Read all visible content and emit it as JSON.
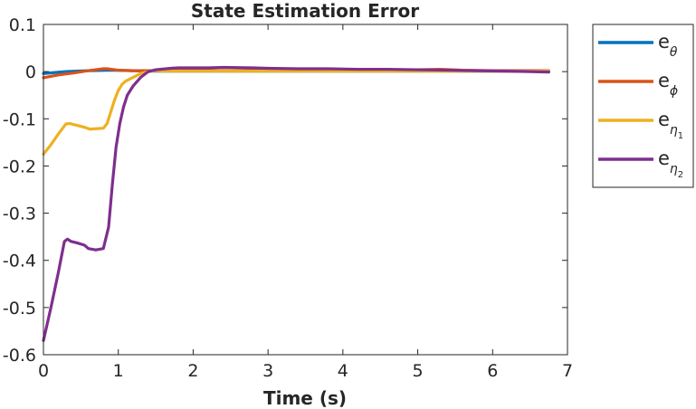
{
  "chart_data": {
    "type": "line",
    "title": "State Estimation Error",
    "xlabel": "Time (s)",
    "ylabel": "",
    "xlim": [
      0,
      7
    ],
    "ylim": [
      -0.6,
      0.1
    ],
    "xticks": [
      0,
      1,
      2,
      3,
      4,
      5,
      6,
      7
    ],
    "xtick_labels": [
      "0",
      "1",
      "2",
      "3",
      "4",
      "5",
      "6",
      "7"
    ],
    "yticks": [
      0.1,
      0,
      -0.1,
      -0.2,
      -0.3,
      -0.4,
      -0.5,
      -0.6
    ],
    "ytick_labels": [
      "0.1",
      "0",
      "-0.1",
      "-0.2",
      "-0.3",
      "-0.4",
      "-0.5",
      "-0.6"
    ],
    "grid": false,
    "legend_position": "outside-right",
    "series": [
      {
        "name": "e_θ",
        "legend_base": "e",
        "legend_sub": "θ",
        "legend_subsub": "",
        "color": "#0072BD",
        "x": [
          0,
          0.3,
          0.6,
          0.9,
          1.2,
          1.5,
          2.0,
          3.0,
          4.0,
          5.0,
          6.0,
          6.75
        ],
        "y": [
          -0.004,
          0.0,
          0.002,
          0.003,
          0.002,
          0.001,
          0.001,
          0.001,
          0.001,
          0.001,
          0.001,
          0.001
        ]
      },
      {
        "name": "e_φ",
        "legend_base": "e",
        "legend_sub": "ϕ",
        "legend_subsub": "",
        "color": "#D95319",
        "x": [
          0,
          0.2,
          0.4,
          0.6,
          0.8,
          0.85,
          1.0,
          1.2,
          1.5,
          2.0,
          3.0,
          4.0,
          5.0,
          5.3,
          5.6,
          6.0,
          6.75
        ],
        "y": [
          -0.013,
          -0.007,
          -0.003,
          0.002,
          0.006,
          0.006,
          0.003,
          0.002,
          0.002,
          0.002,
          0.002,
          0.002,
          0.004,
          0.005,
          0.003,
          0.002,
          0.002
        ]
      },
      {
        "name": "e_η1",
        "legend_base": "e",
        "legend_sub": "η",
        "legend_subsub": "1",
        "color": "#EDB120",
        "x": [
          0,
          0.1,
          0.2,
          0.3,
          0.35,
          0.45,
          0.55,
          0.62,
          0.7,
          0.8,
          0.85,
          0.9,
          0.95,
          1.0,
          1.05,
          1.1,
          1.2,
          1.3,
          1.4,
          1.5,
          1.7,
          2.0,
          3.0,
          4.0,
          5.0,
          6.0,
          6.75
        ],
        "y": [
          -0.175,
          -0.155,
          -0.132,
          -0.111,
          -0.11,
          -0.114,
          -0.118,
          -0.122,
          -0.121,
          -0.12,
          -0.11,
          -0.085,
          -0.06,
          -0.04,
          -0.027,
          -0.02,
          -0.012,
          -0.004,
          0.0,
          0.002,
          0.001,
          0.001,
          0.001,
          0.001,
          0.001,
          0.001,
          0.001
        ]
      },
      {
        "name": "e_η2",
        "legend_base": "e",
        "legend_sub": "η",
        "legend_subsub": "2",
        "color": "#7E2F8E",
        "x": [
          0,
          0.1,
          0.2,
          0.28,
          0.32,
          0.37,
          0.45,
          0.55,
          0.6,
          0.7,
          0.8,
          0.87,
          0.92,
          0.97,
          1.02,
          1.07,
          1.12,
          1.2,
          1.3,
          1.4,
          1.5,
          1.7,
          1.8,
          2.0,
          2.2,
          2.4,
          2.8,
          3.0,
          3.4,
          3.8,
          4.2,
          4.6,
          5.0,
          5.4,
          5.8,
          6.2,
          6.5,
          6.75
        ],
        "y": [
          -0.57,
          -0.5,
          -0.425,
          -0.36,
          -0.355,
          -0.36,
          -0.363,
          -0.368,
          -0.375,
          -0.378,
          -0.375,
          -0.33,
          -0.24,
          -0.16,
          -0.11,
          -0.075,
          -0.05,
          -0.03,
          -0.012,
          0.0,
          0.004,
          0.007,
          0.008,
          0.008,
          0.008,
          0.009,
          0.008,
          0.007,
          0.006,
          0.006,
          0.005,
          0.005,
          0.004,
          0.003,
          0.002,
          0.001,
          0.0,
          -0.001
        ]
      }
    ]
  }
}
